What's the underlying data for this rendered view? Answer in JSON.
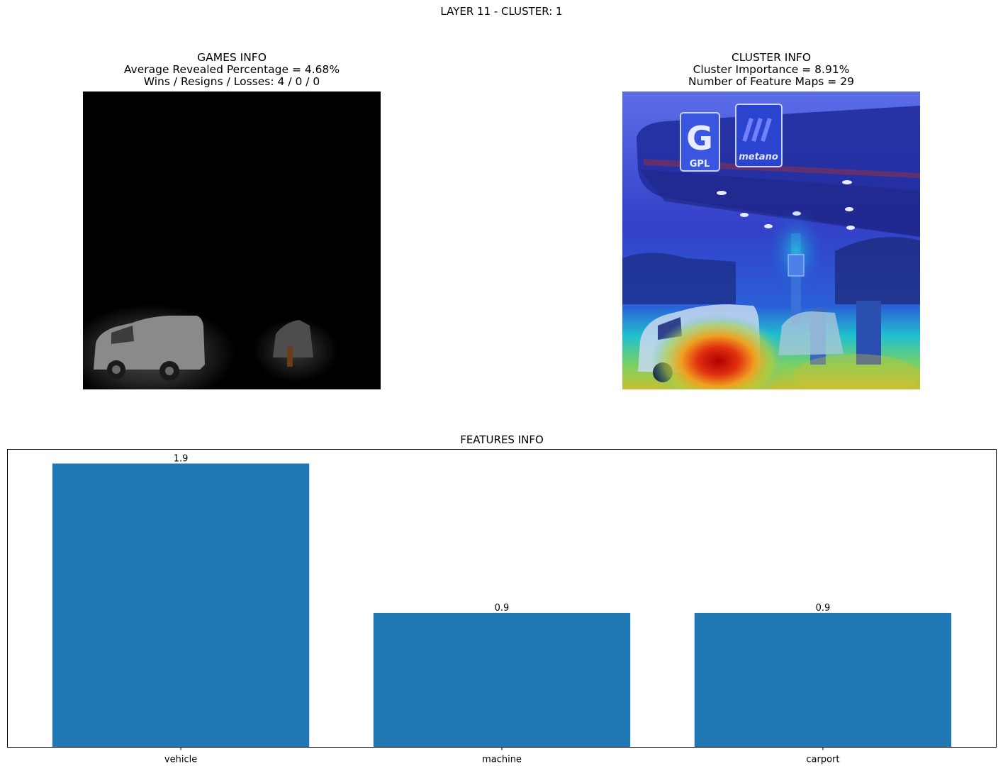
{
  "suptitle": "LAYER 11 - CLUSTER: 1",
  "games_info": {
    "title": "GAMES INFO",
    "line1": "Average Revealed Percentage = 4.68%",
    "line2": "Wins / Resigns / Losses: 4 / 0 / 0"
  },
  "cluster_info": {
    "title": "CLUSTER INFO",
    "line1": "Cluster Importance = 8.91%",
    "line2": "Number of Feature Maps = 29"
  },
  "images": {
    "masked_scene_text": [
      "GPL",
      "metano"
    ]
  },
  "chart_data": {
    "type": "bar",
    "title": "FEATURES INFO",
    "categories": [
      "vehicle",
      "machine",
      "carport"
    ],
    "values": [
      1.9,
      0.9,
      0.9
    ],
    "value_labels": [
      "1.9",
      "0.9",
      "0.9"
    ],
    "xlabel": "",
    "ylabel": "",
    "ylim": [
      0,
      1.995
    ],
    "yticks_visible": false,
    "bar_color": "#1f77b4",
    "grid": false
  }
}
